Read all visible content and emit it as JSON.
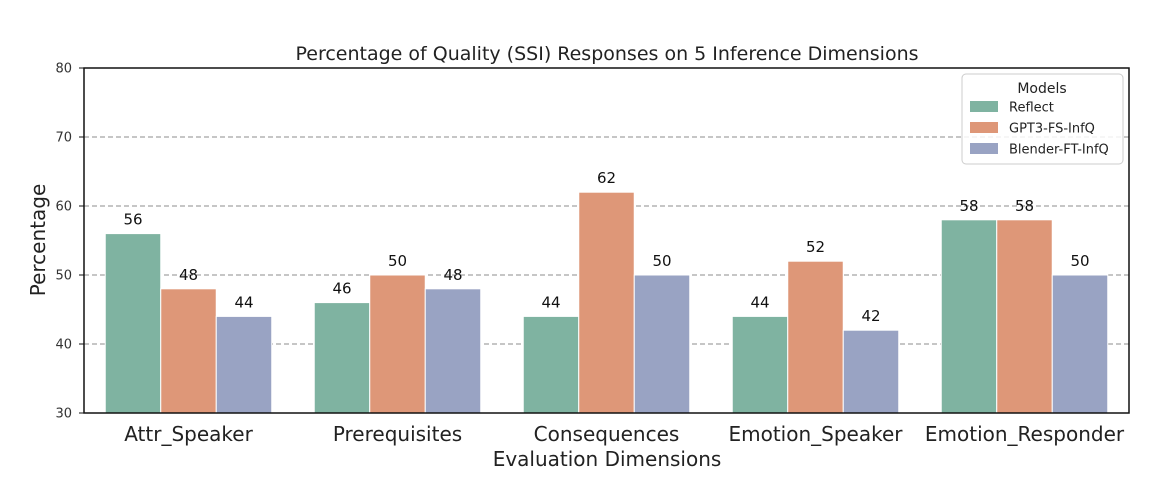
{
  "chart_data": {
    "type": "bar",
    "title": "Percentage of Quality (SSI) Responses on 5 Inference Dimensions",
    "xlabel": "Evaluation Dimensions",
    "ylabel": "Percentage",
    "ylim": [
      30,
      80
    ],
    "yticks": [
      30,
      40,
      50,
      60,
      70,
      80
    ],
    "grid": true,
    "legend": {
      "title": "Models",
      "position": "top-right"
    },
    "categories": [
      "Attr_Speaker",
      "Prerequisites",
      "Consequences",
      "Emotion_Speaker",
      "Emotion_Responder"
    ],
    "series": [
      {
        "name": "Reflect",
        "color": "#7fb3a1",
        "values": [
          56,
          46,
          44,
          44,
          58
        ]
      },
      {
        "name": "GPT3-FS-InfQ",
        "color": "#de9778",
        "values": [
          48,
          50,
          62,
          52,
          58
        ]
      },
      {
        "name": "Blender-FT-InfQ",
        "color": "#99a3c3",
        "values": [
          44,
          48,
          50,
          42,
          50
        ]
      }
    ]
  }
}
